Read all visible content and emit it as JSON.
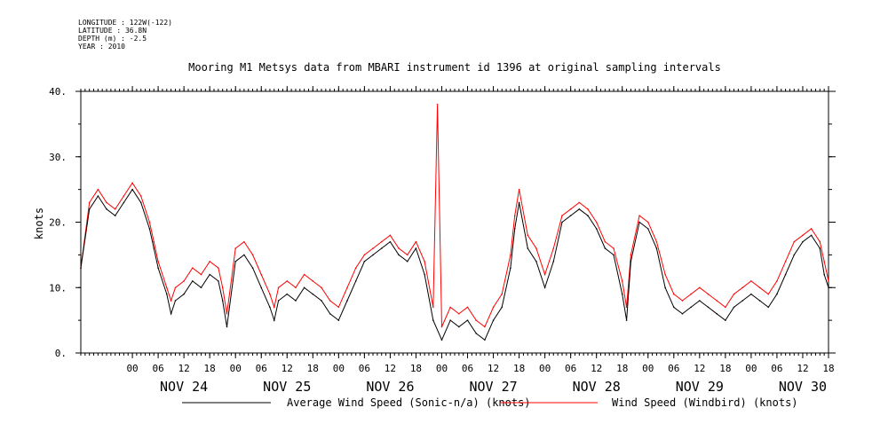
{
  "header": {
    "longitude": "LONGITUDE : 122W(-122)",
    "latitude": "LATITUDE : 36.8N",
    "depth": "DEPTH (m) : -2.5",
    "year": "YEAR : 2010"
  },
  "chart_data": {
    "type": "line",
    "title": "Mooring M1 Metsys data from MBARI instrument id 1396 at original sampling intervals",
    "ylabel": "knots",
    "ylim": [
      0,
      40
    ],
    "y_ticks": [
      0,
      10,
      20,
      30,
      40
    ],
    "y_tick_labels": [
      "0.",
      "10.",
      "20.",
      "30.",
      "40."
    ],
    "x_unit": "hours since NOV 23 00:00",
    "xlim": [
      12,
      186
    ],
    "x_hour_ticks": [
      24,
      30,
      36,
      42,
      48,
      54,
      60,
      66,
      72,
      78,
      84,
      90,
      96,
      102,
      108,
      114,
      120,
      126,
      132,
      138,
      144,
      150,
      156,
      162,
      168,
      174,
      180,
      186
    ],
    "x_hour_tick_labels": [
      "00",
      "06",
      "12",
      "18",
      "00",
      "06",
      "12",
      "18",
      "00",
      "06",
      "12",
      "18",
      "00",
      "06",
      "12",
      "18",
      "00",
      "06",
      "12",
      "18",
      "00",
      "06",
      "12",
      "18",
      "00",
      "06",
      "12",
      "18"
    ],
    "day_labels": [
      {
        "x": 36,
        "label": "NOV 24"
      },
      {
        "x": 60,
        "label": "NOV 25"
      },
      {
        "x": 84,
        "label": "NOV 26"
      },
      {
        "x": 108,
        "label": "NOV 27"
      },
      {
        "x": 132,
        "label": "NOV 28"
      },
      {
        "x": 156,
        "label": "NOV 29"
      },
      {
        "x": 180,
        "label": "NOV 30"
      }
    ],
    "series": [
      {
        "name": "Average Wind Speed (Sonic-n/a) (knots)",
        "color": "#000000",
        "x": [
          12,
          14,
          16,
          18,
          20,
          22,
          24,
          26,
          28,
          29,
          30,
          32,
          33,
          34,
          36,
          38,
          40,
          42,
          44,
          45,
          46,
          48,
          50,
          52,
          54,
          56,
          57,
          58,
          60,
          62,
          64,
          66,
          68,
          70,
          72,
          74,
          76,
          78,
          80,
          82,
          84,
          86,
          88,
          90,
          92,
          94,
          96,
          98,
          100,
          102,
          104,
          106,
          108,
          110,
          112,
          113,
          114,
          116,
          118,
          120,
          122,
          124,
          126,
          128,
          130,
          132,
          134,
          136,
          138,
          139,
          140,
          142,
          144,
          146,
          148,
          150,
          152,
          154,
          156,
          158,
          160,
          162,
          164,
          166,
          168,
          170,
          172,
          174,
          176,
          178,
          180,
          182,
          184,
          185,
          186
        ],
        "y": [
          13,
          22,
          24,
          22,
          21,
          23,
          25,
          23,
          19,
          16,
          13,
          9,
          6,
          8,
          9,
          11,
          10,
          12,
          11,
          8,
          4,
          14,
          15,
          13,
          10,
          7,
          5,
          8,
          9,
          8,
          10,
          9,
          8,
          6,
          5,
          8,
          11,
          14,
          15,
          16,
          17,
          15,
          14,
          16,
          12,
          5,
          2,
          5,
          4,
          5,
          3,
          2,
          5,
          7,
          13,
          19,
          23,
          16,
          14,
          10,
          14,
          20,
          21,
          22,
          21,
          19,
          16,
          15,
          9,
          5,
          14,
          20,
          19,
          16,
          10,
          7,
          6,
          7,
          8,
          7,
          6,
          5,
          7,
          8,
          9,
          8,
          7,
          9,
          12,
          15,
          17,
          18,
          16,
          12,
          10
        ]
      },
      {
        "name": "Wind Speed (Windbird) (knots)",
        "color": "#ff0000",
        "x": [
          12,
          14,
          16,
          18,
          20,
          22,
          24,
          26,
          28,
          29,
          30,
          32,
          33,
          34,
          36,
          38,
          40,
          42,
          44,
          45,
          46,
          48,
          50,
          52,
          54,
          56,
          57,
          58,
          60,
          62,
          64,
          66,
          68,
          70,
          72,
          74,
          76,
          78,
          80,
          82,
          84,
          86,
          88,
          90,
          92,
          94,
          95,
          96,
          98,
          100,
          102,
          104,
          106,
          108,
          110,
          112,
          113,
          114,
          116,
          118,
          120,
          122,
          124,
          126,
          128,
          130,
          132,
          134,
          136,
          138,
          139,
          140,
          142,
          144,
          146,
          148,
          150,
          152,
          154,
          156,
          158,
          160,
          162,
          164,
          166,
          168,
          170,
          172,
          174,
          176,
          178,
          180,
          182,
          184,
          185,
          186
        ],
        "y": [
          13,
          23,
          25,
          23,
          22,
          24,
          26,
          24,
          20,
          17,
          14,
          10,
          8,
          10,
          11,
          13,
          12,
          14,
          13,
          10,
          6,
          16,
          17,
          15,
          12,
          9,
          7,
          10,
          11,
          10,
          12,
          11,
          10,
          8,
          7,
          10,
          13,
          15,
          16,
          17,
          18,
          16,
          15,
          17,
          14,
          7,
          38,
          4,
          7,
          6,
          7,
          5,
          4,
          7,
          9,
          15,
          21,
          25,
          18,
          16,
          12,
          16,
          21,
          22,
          23,
          22,
          20,
          17,
          16,
          11,
          7,
          15,
          21,
          20,
          17,
          12,
          9,
          8,
          9,
          10,
          9,
          8,
          7,
          9,
          10,
          11,
          10,
          9,
          11,
          14,
          17,
          18,
          19,
          17,
          14,
          11
        ]
      }
    ],
    "legend": {
      "placement": "bottom"
    }
  }
}
